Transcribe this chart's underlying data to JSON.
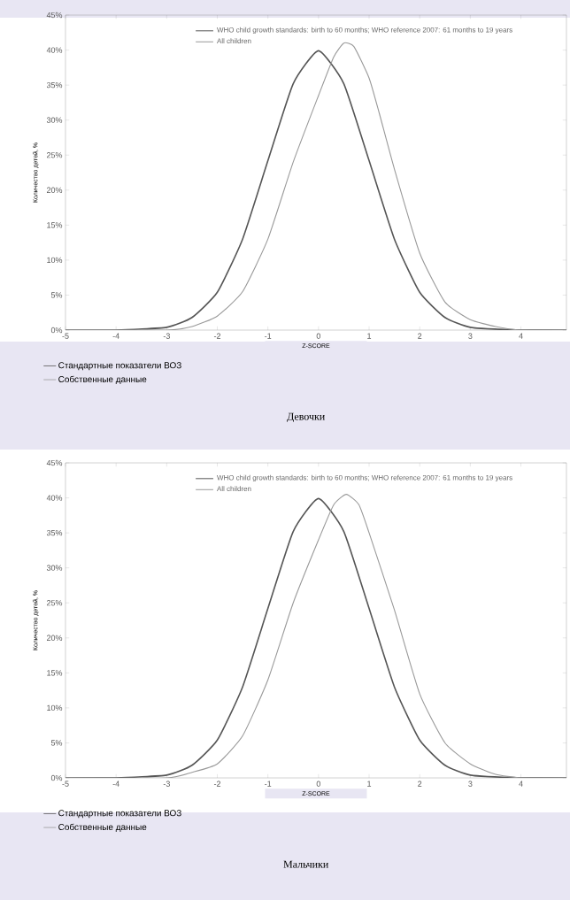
{
  "chart_data": [
    {
      "type": "line",
      "title": "Девочки",
      "xlabel": "Z-SCORE",
      "ylabel": "Количество детей, %",
      "xlim": [
        -5,
        4.9
      ],
      "xticks": [
        -5,
        -4,
        -3,
        -2,
        -1,
        0,
        1,
        2,
        3,
        4
      ],
      "ylim": [
        0,
        45
      ],
      "yticks": [
        {
          "value": 0,
          "label": "0%"
        },
        {
          "value": 5,
          "label": "5%"
        },
        {
          "value": 10,
          "label": "10%"
        },
        {
          "value": 15,
          "label": "15%"
        },
        {
          "value": 20,
          "label": "20%"
        },
        {
          "value": 25,
          "label": "25%"
        },
        {
          "value": 30,
          "label": "30%"
        },
        {
          "value": 35,
          "label": "35%"
        },
        {
          "value": 40,
          "label": "40%"
        },
        {
          "value": 45,
          "label": "45%"
        }
      ],
      "legend": "bottom left",
      "grid": false,
      "marker": "none",
      "annotations": [
        "WHO child growth standards: birth to 60 months; WHO reference 2007: 61 months to 19 years",
        "All children"
      ],
      "series": [
        {
          "name": "Стандартные показатели ВОЗ",
          "color": "#555555",
          "x": [
            -5,
            -4,
            -3,
            -2.5,
            -2,
            -1.5,
            -1,
            -0.5,
            0,
            0.5,
            1,
            1.5,
            2,
            2.5,
            3,
            4,
            4.9
          ],
          "values": [
            0,
            0,
            0.4,
            1.8,
            5.4,
            13,
            24.2,
            35.2,
            39.9,
            35.2,
            24.2,
            13,
            5.4,
            1.8,
            0.4,
            0,
            0
          ]
        },
        {
          "name": "Собственные данные",
          "color": "#999999",
          "x": [
            -5,
            -3,
            -2.5,
            -2,
            -1.5,
            -1,
            -0.5,
            0,
            0.3,
            0.5,
            0.7,
            1,
            1.2,
            1.5,
            2,
            2.5,
            3,
            3.5,
            4,
            4.9
          ],
          "values": [
            0,
            0,
            0.5,
            2,
            5.5,
            13,
            24,
            33.5,
            39,
            41,
            40.5,
            36,
            31,
            23,
            11,
            4,
            1.5,
            0.5,
            0,
            0
          ]
        }
      ]
    },
    {
      "type": "line",
      "title": "Мальчики",
      "xlabel": "Z-SCORE",
      "ylabel": "Количество детей, %",
      "xlim": [
        -5,
        4.9
      ],
      "xticks": [
        -5,
        -4,
        -3,
        -2,
        -1,
        0,
        1,
        2,
        3,
        4
      ],
      "ylim": [
        0,
        45
      ],
      "yticks": [
        {
          "value": 0,
          "label": "0%"
        },
        {
          "value": 5,
          "label": "5%"
        },
        {
          "value": 10,
          "label": "10%"
        },
        {
          "value": 15,
          "label": "15%"
        },
        {
          "value": 20,
          "label": "20%"
        },
        {
          "value": 25,
          "label": "25%"
        },
        {
          "value": 30,
          "label": "30%"
        },
        {
          "value": 35,
          "label": "35%"
        },
        {
          "value": 40,
          "label": "40%"
        },
        {
          "value": 45,
          "label": "45%"
        }
      ],
      "legend": "bottom left",
      "grid": false,
      "marker": "none",
      "annotations": [
        "WHO child growth standards: birth to 60 months; WHO reference 2007: 61 months to 19 years",
        "All children"
      ],
      "series": [
        {
          "name": "Стандартные показатели ВОЗ",
          "color": "#555555",
          "x": [
            -5,
            -4,
            -3,
            -2.5,
            -2,
            -1.5,
            -1,
            -0.5,
            0,
            0.5,
            1,
            1.5,
            2,
            2.5,
            3,
            4,
            4.9
          ],
          "values": [
            0,
            0,
            0.4,
            1.8,
            5.4,
            13,
            24.2,
            35.2,
            39.9,
            35.2,
            24.2,
            13,
            5.4,
            1.8,
            0.4,
            0,
            0
          ]
        },
        {
          "name": "Собственные данные",
          "color": "#999999",
          "x": [
            -5,
            -3,
            -2.5,
            -2,
            -1.5,
            -1,
            -0.5,
            0,
            0.3,
            0.55,
            0.8,
            1,
            1.5,
            2,
            2.5,
            3,
            3.5,
            4,
            4.9
          ],
          "values": [
            0,
            0,
            0.8,
            2,
            6,
            14,
            25,
            34,
            39,
            40.5,
            39,
            35,
            24,
            12,
            5,
            2,
            0.5,
            0,
            0
          ]
        }
      ]
    }
  ]
}
